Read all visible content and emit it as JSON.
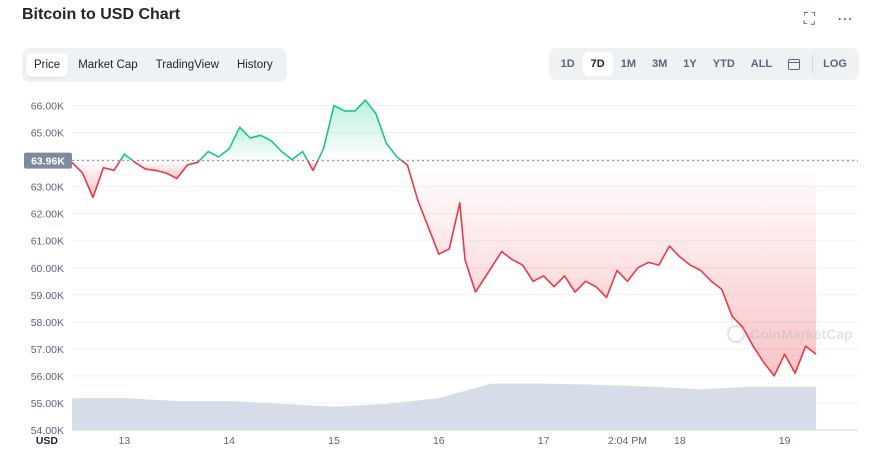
{
  "header": {
    "title": "Bitcoin to USD Chart",
    "fullscreen_icon": "expand-icon",
    "more_icon": "more-horizontal-icon"
  },
  "tabs": [
    {
      "label": "Price",
      "active": true
    },
    {
      "label": "Market Cap",
      "active": false
    },
    {
      "label": "TradingView",
      "active": false
    },
    {
      "label": "History",
      "active": false
    }
  ],
  "ranges": {
    "items": [
      {
        "label": "1D",
        "active": false
      },
      {
        "label": "7D",
        "active": true
      },
      {
        "label": "1M",
        "active": false
      },
      {
        "label": "3M",
        "active": false
      },
      {
        "label": "1Y",
        "active": false
      },
      {
        "label": "YTD",
        "active": false
      },
      {
        "label": "ALL",
        "active": false
      }
    ],
    "calendar_icon": "calendar-icon",
    "log_label": "LOG"
  },
  "watermark": "CoinMarketCap",
  "chart_data": {
    "type": "line",
    "ylabel": "USD",
    "ylim": [
      54000,
      66500
    ],
    "y_ticks": [
      "54.00K",
      "55.00K",
      "56.00K",
      "57.00K",
      "58.00K",
      "59.00K",
      "60.00K",
      "61.00K",
      "62.00K",
      "63.00K",
      "64.00K",
      "65.00K",
      "66.00K"
    ],
    "x_ticks": [
      "13",
      "14",
      "15",
      "16",
      "17",
      "2:04 PM",
      "18",
      "19"
    ],
    "x_tick_positions": [
      13,
      14,
      15,
      16,
      17,
      17.8,
      18.3,
      19.3
    ],
    "xlim": [
      12.5,
      20.0
    ],
    "reference": {
      "value": 63960,
      "label": "63.96K"
    },
    "colors": {
      "up": "#16c784",
      "down": "#ea3943",
      "volume": "#cfd6e4",
      "reference": "#808a9d"
    },
    "series": [
      {
        "points": [
          [
            12.5,
            63900
          ],
          [
            12.6,
            63500
          ],
          [
            12.7,
            62600
          ],
          [
            12.8,
            63700
          ],
          [
            12.9,
            63600
          ],
          [
            13.0,
            64200
          ],
          [
            13.1,
            63900
          ],
          [
            13.2,
            63650
          ],
          [
            13.3,
            63600
          ],
          [
            13.4,
            63500
          ],
          [
            13.5,
            63300
          ],
          [
            13.6,
            63800
          ],
          [
            13.7,
            63900
          ],
          [
            13.8,
            64300
          ],
          [
            13.9,
            64100
          ],
          [
            14.0,
            64400
          ],
          [
            14.1,
            65200
          ],
          [
            14.2,
            64800
          ],
          [
            14.3,
            64900
          ],
          [
            14.4,
            64700
          ],
          [
            14.5,
            64300
          ],
          [
            14.6,
            64000
          ],
          [
            14.7,
            64300
          ],
          [
            14.8,
            63600
          ],
          [
            14.9,
            64400
          ],
          [
            15.0,
            66000
          ],
          [
            15.1,
            65800
          ],
          [
            15.2,
            65800
          ],
          [
            15.3,
            66200
          ],
          [
            15.4,
            65700
          ],
          [
            15.5,
            64600
          ],
          [
            15.6,
            64100
          ],
          [
            15.7,
            63800
          ],
          [
            15.8,
            62500
          ],
          [
            15.9,
            61500
          ],
          [
            16.0,
            60500
          ],
          [
            16.1,
            60700
          ],
          [
            16.2,
            62400
          ],
          [
            16.25,
            60300
          ],
          [
            16.35,
            59100
          ],
          [
            16.5,
            60000
          ],
          [
            16.6,
            60600
          ],
          [
            16.7,
            60300
          ],
          [
            16.8,
            60100
          ],
          [
            16.9,
            59500
          ],
          [
            17.0,
            59700
          ],
          [
            17.1,
            59300
          ],
          [
            17.2,
            59700
          ],
          [
            17.3,
            59100
          ],
          [
            17.4,
            59500
          ],
          [
            17.5,
            59300
          ],
          [
            17.6,
            58900
          ],
          [
            17.7,
            59900
          ],
          [
            17.8,
            59500
          ],
          [
            17.9,
            60000
          ],
          [
            18.0,
            60200
          ],
          [
            18.1,
            60100
          ],
          [
            18.2,
            60800
          ],
          [
            18.3,
            60400
          ],
          [
            18.4,
            60100
          ],
          [
            18.5,
            59900
          ],
          [
            18.6,
            59500
          ],
          [
            18.7,
            59200
          ],
          [
            18.8,
            58200
          ],
          [
            18.9,
            57800
          ],
          [
            19.0,
            57100
          ],
          [
            19.1,
            56500
          ],
          [
            19.2,
            56000
          ],
          [
            19.3,
            56800
          ],
          [
            19.4,
            56100
          ],
          [
            19.5,
            57100
          ],
          [
            19.6,
            56800
          ]
        ]
      }
    ],
    "volume": [
      [
        12.5,
        0.55
      ],
      [
        13.0,
        0.55
      ],
      [
        13.5,
        0.5
      ],
      [
        14.0,
        0.5
      ],
      [
        14.5,
        0.45
      ],
      [
        15.0,
        0.4
      ],
      [
        15.5,
        0.45
      ],
      [
        16.0,
        0.55
      ],
      [
        16.5,
        0.8
      ],
      [
        17.0,
        0.8
      ],
      [
        17.5,
        0.78
      ],
      [
        18.0,
        0.75
      ],
      [
        18.5,
        0.7
      ],
      [
        19.0,
        0.75
      ],
      [
        19.6,
        0.75
      ]
    ]
  }
}
